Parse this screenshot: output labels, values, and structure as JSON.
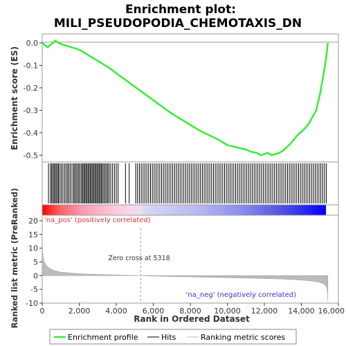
{
  "chart_data": [
    {
      "type": "line",
      "title_line1": "Enrichment plot:",
      "title_line2": "MILI_PSEUDOPODIA_CHEMOTAXIS_DN",
      "ylabel": "Enrichment score (ES)",
      "xlim": [
        0,
        16000
      ],
      "ylim": [
        -0.53,
        0.04
      ],
      "yticks": [
        0.0,
        -0.1,
        -0.2,
        -0.3,
        -0.4,
        -0.5
      ],
      "ytick_labels": [
        "0.0",
        "-0.1",
        "-0.2",
        "-0.3",
        "-0.4",
        "-0.5"
      ],
      "color": "#33ee33",
      "series": [
        {
          "name": "Enrichment profile",
          "x": [
            0,
            150,
            300,
            420,
            500,
            600,
            700,
            800,
            900,
            1000,
            1200,
            1400,
            1600,
            1800,
            2000,
            2400,
            2800,
            3200,
            3600,
            4000,
            4500,
            5000,
            5500,
            6000,
            6500,
            7000,
            7500,
            8000,
            8500,
            9000,
            9500,
            10000,
            10500,
            11000,
            11300,
            11600,
            11800,
            12000,
            12200,
            12400,
            12600,
            12800,
            13000,
            13200,
            13400,
            13600,
            13800,
            14000,
            14200,
            14400,
            14600,
            14800,
            15000,
            15200,
            15350,
            15430
          ],
          "y": [
            0.0,
            -0.01,
            -0.02,
            -0.01,
            -0.005,
            0.0,
            0.01,
            0.005,
            0.0,
            -0.005,
            -0.01,
            -0.015,
            -0.02,
            -0.025,
            -0.03,
            -0.05,
            -0.07,
            -0.09,
            -0.11,
            -0.135,
            -0.165,
            -0.195,
            -0.225,
            -0.255,
            -0.285,
            -0.315,
            -0.34,
            -0.365,
            -0.39,
            -0.41,
            -0.43,
            -0.455,
            -0.465,
            -0.475,
            -0.485,
            -0.49,
            -0.5,
            -0.495,
            -0.49,
            -0.5,
            -0.495,
            -0.49,
            -0.48,
            -0.465,
            -0.45,
            -0.43,
            -0.41,
            -0.395,
            -0.38,
            -0.36,
            -0.33,
            -0.3,
            -0.23,
            -0.14,
            -0.06,
            0.0
          ]
        }
      ]
    },
    {
      "type": "hits",
      "hit_ranks": [
        340,
        450,
        510,
        580,
        640,
        700,
        760,
        830,
        880,
        960,
        1040,
        1120,
        1210,
        1290,
        1370,
        1440,
        1520,
        1610,
        1700,
        1760,
        1830,
        1900,
        1970,
        2040,
        2120,
        2180,
        2240,
        2300,
        2360,
        2420,
        2480,
        2540,
        2600,
        2660,
        2720,
        2780,
        2840,
        2900,
        2960,
        3020,
        3080,
        3140,
        3200,
        3260,
        3330,
        3400,
        3470,
        3540,
        3610,
        3700,
        3800,
        3900,
        4000,
        4100,
        4500,
        4700,
        5050,
        5150,
        5250,
        5350,
        5450,
        5550,
        5650,
        5750,
        5850,
        5950,
        6050,
        6150,
        6250,
        6350,
        6450,
        6550,
        6650,
        6750,
        6850,
        6950,
        7050,
        7150,
        7250,
        7350,
        7450,
        7550,
        7650,
        7750,
        7850,
        7950,
        8050,
        8150,
        8250,
        8350,
        8450,
        8550,
        8650,
        8750,
        8850,
        8950,
        9050,
        9150,
        9250,
        9350,
        9450,
        9550,
        9650,
        9750,
        9850,
        9950,
        10050,
        10150,
        10250,
        10350,
        10450,
        10550,
        10650,
        10750,
        10850,
        10950,
        11050,
        11150,
        11250,
        11350,
        11450,
        11550,
        11650,
        11750,
        11850,
        11950,
        12050,
        12150,
        12250,
        12350,
        12450,
        12550,
        12650,
        12750,
        12850,
        12950,
        13050,
        13150,
        13250,
        13350,
        13450,
        13550,
        13650,
        13750,
        13850,
        13950,
        14050,
        14150,
        14250,
        14350,
        14450,
        14550,
        14650,
        14750,
        14850,
        14950,
        15050,
        15150,
        15250,
        15350
      ]
    },
    {
      "type": "area",
      "ylabel": "Ranked list metric (PreRanked)",
      "xlabel": "Rank in Ordered Dataset",
      "xlim": [
        0,
        16000
      ],
      "ylim": [
        -10,
        22
      ],
      "xticks": [
        0,
        2000,
        4000,
        6000,
        8000,
        10000,
        12000,
        14000,
        16000
      ],
      "xtick_labels": [
        "0",
        "2,000",
        "4,000",
        "6,000",
        "8,000",
        "10,000",
        "12,000",
        "14,000",
        "16,000"
      ],
      "yticks": [
        20,
        15,
        10,
        5,
        0,
        -5,
        -10
      ],
      "ytick_labels": [
        "20",
        "15",
        "10",
        "5",
        "0",
        "-5",
        "-10"
      ],
      "zero_cross": 5318,
      "series": [
        {
          "name": "Ranking metric scores",
          "x": [
            0,
            20,
            60,
            120,
            200,
            300,
            450,
            600,
            800,
            1000,
            1300,
            1600,
            2000,
            2500,
            3000,
            3500,
            4000,
            4500,
            5000,
            5318,
            6000,
            7000,
            8000,
            9000,
            10000,
            11000,
            12000,
            13000,
            13500,
            14000,
            14500,
            14800,
            15000,
            15200,
            15300,
            15380,
            15420,
            15430
          ],
          "y": [
            12,
            9,
            6.5,
            5,
            4,
            3.2,
            2.5,
            2.0,
            1.6,
            1.3,
            1.1,
            0.9,
            0.7,
            0.55,
            0.45,
            0.35,
            0.25,
            0.15,
            0.07,
            0.0,
            -0.15,
            -0.3,
            -0.45,
            -0.6,
            -0.75,
            -0.9,
            -1.05,
            -1.25,
            -1.4,
            -1.6,
            -1.9,
            -2.2,
            -2.5,
            -3.0,
            -3.6,
            -4.5,
            -6.5,
            -9.5
          ]
        }
      ]
    }
  ],
  "labels": {
    "na_pos": "'na_pos' (positively correlated)",
    "na_neg": "'na_neg' (negatively correlated)",
    "zero_cross": "Zero cross at 5318"
  },
  "legend": {
    "items": [
      {
        "label": "Enrichment profile",
        "color": "#33ee33"
      },
      {
        "label": "Hits",
        "color": "#000000"
      },
      {
        "label": "Ranking metric scores",
        "color": "#bbbbbb"
      }
    ]
  }
}
